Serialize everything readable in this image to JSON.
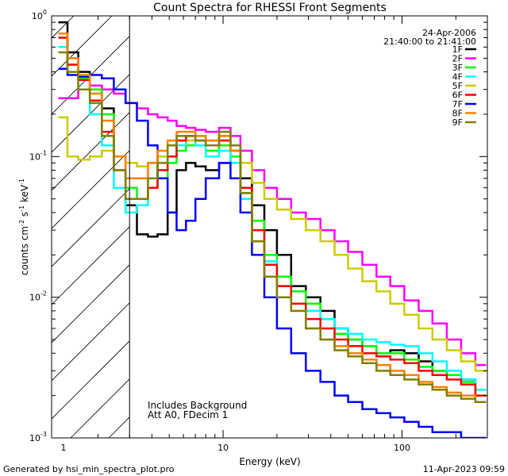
{
  "chart_data": {
    "type": "line",
    "title": "Count Spectra for RHESSI Front Segments",
    "xlabel": "Energy (keV)",
    "ylabel": "counts cm",
    "ylabel_sup1": "-2",
    "ylabel_mid": " s",
    "ylabel_sup2": "-1",
    "ylabel_mid2": " keV",
    "ylabel_sup3": "-1",
    "x_scale": "log",
    "y_scale": "log",
    "xlim": [
      1.1,
      300
    ],
    "ylim": [
      0.001,
      1.0
    ],
    "x_ticks": [
      {
        "value": 1,
        "label": "1"
      },
      {
        "value": 10,
        "label": "10"
      },
      {
        "value": 100,
        "label": "100"
      }
    ],
    "y_ticks": [
      {
        "value": 1,
        "base": "10",
        "exp": "0"
      },
      {
        "value": 0.1,
        "base": "10",
        "exp": "-1"
      },
      {
        "value": 0.01,
        "base": "10",
        "exp": "-2"
      },
      {
        "value": 0.001,
        "base": "10",
        "exp": "-3"
      }
    ],
    "hatched_region_below_kev": 3,
    "date": "24-Apr-2006",
    "time_range": "21:40:00 to 21:41:00",
    "notes": [
      "Includes Background",
      "Att A0, FDecim 1"
    ],
    "legend_placement": "top-right",
    "series": [
      {
        "name": "1F",
        "color": "#000000",
        "values": [
          0.9,
          0.55,
          0.4,
          0.3,
          0.22,
          0.1,
          0.045,
          0.028,
          0.027,
          0.028,
          0.04,
          0.08,
          0.09,
          0.085,
          0.08,
          0.09,
          0.1,
          0.07,
          0.045,
          0.03,
          0.02,
          0.012,
          0.01,
          0.008,
          0.006,
          0.005,
          0.0045,
          0.004,
          0.0042,
          0.004,
          0.0035,
          0.003,
          0.0028,
          0.0026,
          0.0022
        ]
      },
      {
        "name": "2F",
        "color": "#ff00ff",
        "values": [
          0.26,
          0.26,
          0.3,
          0.32,
          0.3,
          0.28,
          0.24,
          0.22,
          0.2,
          0.19,
          0.18,
          0.165,
          0.16,
          0.155,
          0.15,
          0.16,
          0.14,
          0.11,
          0.08,
          0.06,
          0.05,
          0.04,
          0.036,
          0.03,
          0.025,
          0.021,
          0.017,
          0.014,
          0.012,
          0.0095,
          0.008,
          0.0065,
          0.005,
          0.004,
          0.0033
        ]
      },
      {
        "name": "3F",
        "color": "#00ff00",
        "values": [
          0.7,
          0.45,
          0.36,
          0.3,
          0.2,
          0.1,
          0.06,
          0.05,
          0.06,
          0.07,
          0.09,
          0.11,
          0.12,
          0.12,
          0.11,
          0.12,
          0.1,
          0.06,
          0.035,
          0.02,
          0.014,
          0.011,
          0.009,
          0.007,
          0.0055,
          0.005,
          0.0045,
          0.004,
          0.004,
          0.0036,
          0.0032,
          0.003,
          0.0028,
          0.0025,
          0.002
        ]
      },
      {
        "name": "4F",
        "color": "#00ffff",
        "values": [
          0.6,
          0.4,
          0.3,
          0.2,
          0.12,
          0.06,
          0.04,
          0.045,
          0.06,
          0.08,
          0.1,
          0.12,
          0.13,
          0.12,
          0.1,
          0.11,
          0.09,
          0.05,
          0.03,
          0.018,
          0.012,
          0.009,
          0.008,
          0.007,
          0.006,
          0.0055,
          0.005,
          0.0048,
          0.0046,
          0.0045,
          0.004,
          0.0035,
          0.003,
          0.0026,
          0.0022
        ]
      },
      {
        "name": "5F",
        "color": "#cccc00",
        "values": [
          0.19,
          0.1,
          0.095,
          0.1,
          0.11,
          0.1,
          0.09,
          0.085,
          0.09,
          0.1,
          0.12,
          0.13,
          0.13,
          0.14,
          0.13,
          0.14,
          0.12,
          0.09,
          0.065,
          0.05,
          0.042,
          0.036,
          0.03,
          0.025,
          0.02,
          0.016,
          0.013,
          0.011,
          0.009,
          0.0075,
          0.006,
          0.005,
          0.0042,
          0.0035,
          0.003
        ]
      },
      {
        "name": "6F",
        "color": "#ff0000",
        "values": [
          0.7,
          0.45,
          0.35,
          0.25,
          0.15,
          0.08,
          0.05,
          0.05,
          0.06,
          0.08,
          0.1,
          0.13,
          0.14,
          0.13,
          0.12,
          0.13,
          0.11,
          0.06,
          0.03,
          0.017,
          0.012,
          0.009,
          0.007,
          0.006,
          0.005,
          0.0045,
          0.004,
          0.0038,
          0.0036,
          0.0034,
          0.003,
          0.0028,
          0.0026,
          0.0024,
          0.002
        ]
      },
      {
        "name": "7F",
        "color": "#0000ff",
        "values": [
          0.42,
          0.38,
          0.37,
          0.38,
          0.36,
          0.3,
          0.24,
          0.18,
          0.12,
          0.07,
          0.04,
          0.03,
          0.035,
          0.05,
          0.07,
          0.09,
          0.07,
          0.04,
          0.02,
          0.01,
          0.006,
          0.004,
          0.003,
          0.0025,
          0.002,
          0.0018,
          0.0016,
          0.0015,
          0.0014,
          0.0013,
          0.0012,
          0.0011,
          0.0011,
          0.001,
          0.001
        ]
      },
      {
        "name": "8F",
        "color": "#ff8000",
        "values": [
          0.75,
          0.5,
          0.38,
          0.28,
          0.18,
          0.1,
          0.07,
          0.07,
          0.09,
          0.11,
          0.13,
          0.15,
          0.15,
          0.14,
          0.13,
          0.14,
          0.11,
          0.055,
          0.025,
          0.014,
          0.01,
          0.008,
          0.006,
          0.005,
          0.0045,
          0.004,
          0.0036,
          0.0033,
          0.003,
          0.0028,
          0.0025,
          0.0023,
          0.0021,
          0.002,
          0.0018
        ]
      },
      {
        "name": "9F",
        "color": "#808000",
        "values": [
          0.55,
          0.4,
          0.3,
          0.24,
          0.14,
          0.08,
          0.05,
          0.05,
          0.07,
          0.09,
          0.12,
          0.14,
          0.14,
          0.13,
          0.12,
          0.15,
          0.12,
          0.055,
          0.025,
          0.014,
          0.01,
          0.008,
          0.006,
          0.005,
          0.0042,
          0.0038,
          0.0034,
          0.003,
          0.0028,
          0.0026,
          0.0024,
          0.0022,
          0.002,
          0.0019,
          0.0018
        ]
      }
    ],
    "x": [
      1.2,
      1.35,
      1.55,
      1.8,
      2.1,
      2.45,
      2.85,
      3.3,
      3.8,
      4.3,
      4.9,
      5.5,
      6.2,
      7.0,
      8.0,
      9.5,
      11.0,
      12.5,
      14.5,
      17.0,
      20.0,
      24.0,
      29.0,
      35.0,
      42.0,
      50.0,
      60.0,
      72.0,
      86.0,
      103.0,
      124.0,
      148.0,
      178.0,
      214.0,
      257.0
    ]
  },
  "footer": {
    "generated_by": "Generated by hsi_min_spectra_plot.pro",
    "timestamp": "11-Apr-2023 09:59"
  }
}
